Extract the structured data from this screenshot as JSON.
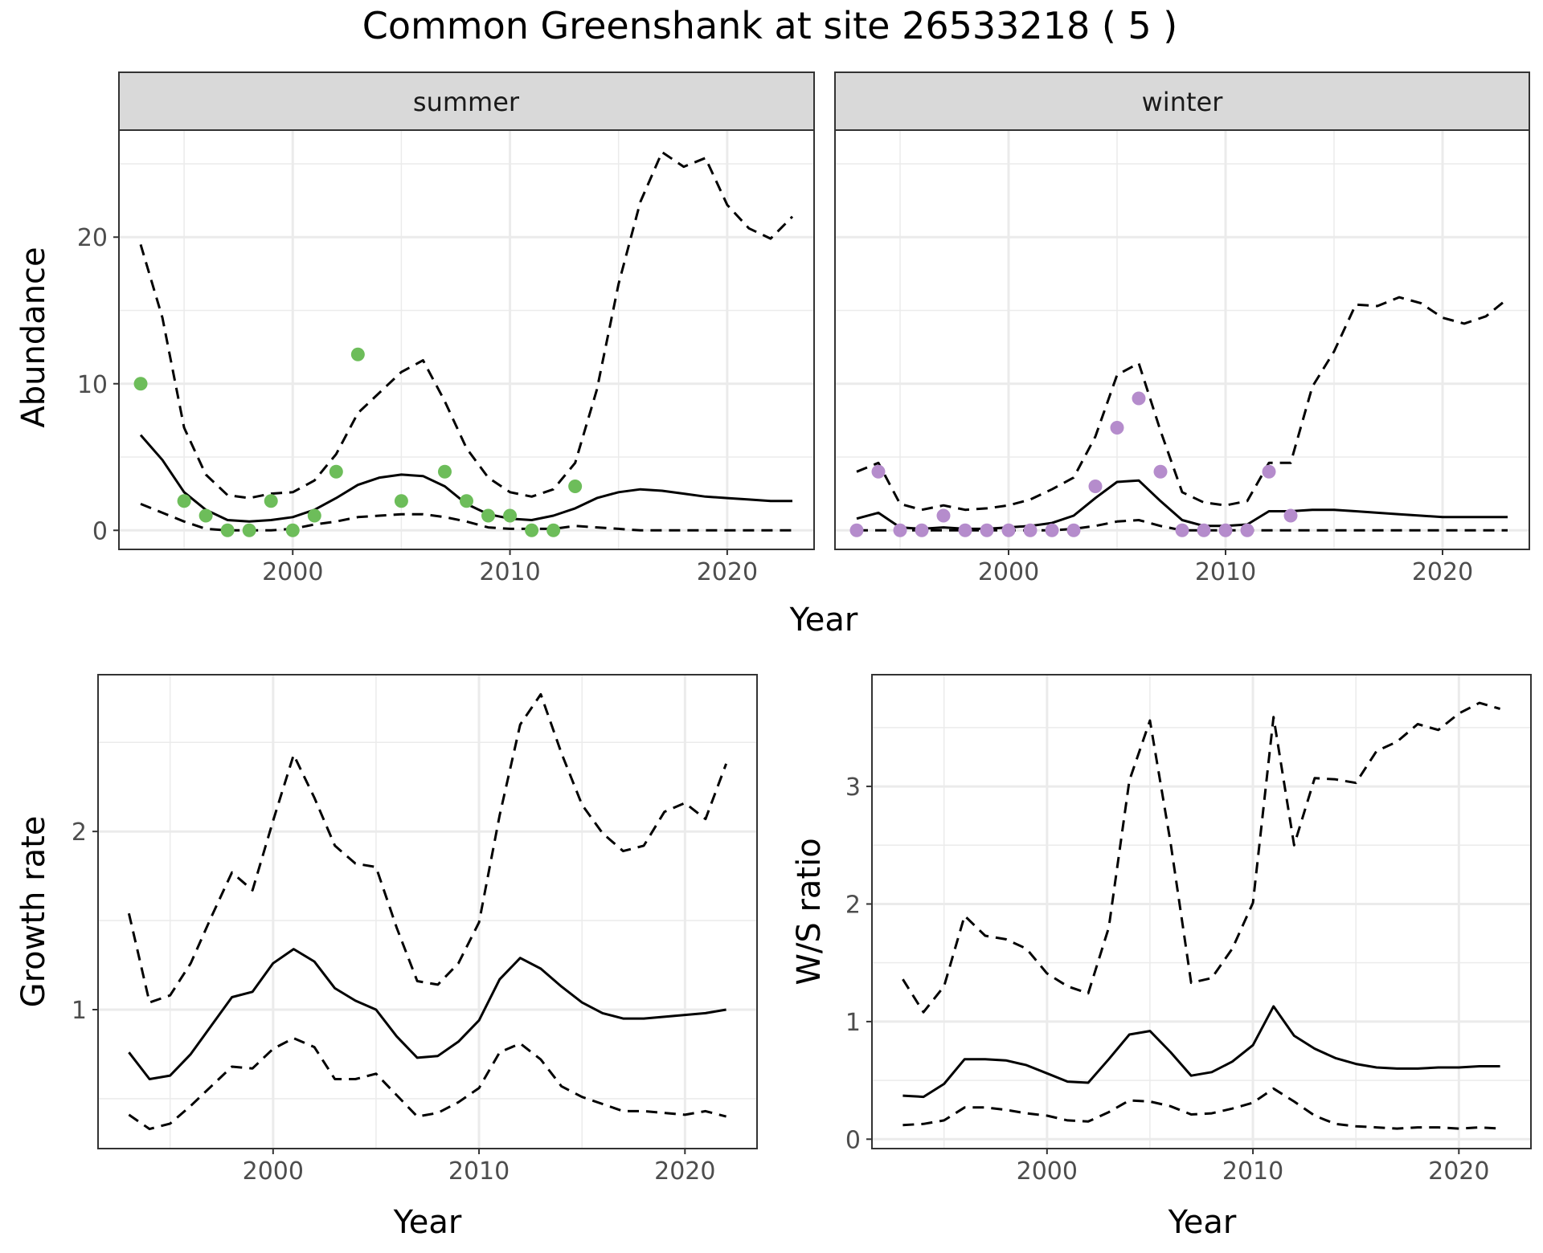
{
  "title": "Common Greenshank at site 26533218 ( 5 )",
  "colors": {
    "summer_points": "#6dbd5a",
    "winter_points": "#b58ccc",
    "line": "#000000",
    "strip_fill": "#d9d9d9",
    "panel_border": "#333333",
    "grid": "#ebebeb"
  },
  "chart_data": [
    {
      "id": "abundance",
      "type": "line",
      "facets": [
        "summer",
        "winter"
      ],
      "xlabel": "Year",
      "ylabel": "Abundance",
      "xlim": [
        1992,
        2024
      ],
      "ylim": [
        -1.3,
        27.3
      ],
      "xticks": [
        2000,
        2010,
        2020
      ],
      "yticks": [
        0,
        10,
        20
      ],
      "grid": true,
      "panels": [
        {
          "facet": "summer",
          "observed": {
            "x": [
              1993,
              1995,
              1996,
              1997,
              1998,
              1999,
              2000,
              2001,
              2002,
              2003,
              2005,
              2007,
              2008,
              2009,
              2010,
              2011,
              2012,
              2013
            ],
            "y": [
              10,
              2,
              1,
              0,
              0,
              2,
              0,
              1,
              4,
              12,
              2,
              4,
              2,
              1,
              1,
              0,
              0,
              3
            ]
          },
          "estimate": {
            "x": [
              1993,
              1994,
              1995,
              1996,
              1997,
              1998,
              1999,
              2000,
              2001,
              2002,
              2003,
              2004,
              2005,
              2006,
              2007,
              2008,
              2009,
              2010,
              2011,
              2012,
              2013,
              2014,
              2015,
              2016,
              2017,
              2018,
              2019,
              2020,
              2021,
              2022,
              2023
            ],
            "y": [
              6.5,
              4.8,
              2.6,
              1.4,
              0.7,
              0.6,
              0.7,
              0.9,
              1.4,
              2.2,
              3.1,
              3.6,
              3.8,
              3.7,
              3.0,
              1.8,
              1.1,
              0.8,
              0.7,
              1.0,
              1.5,
              2.2,
              2.6,
              2.8,
              2.7,
              2.5,
              2.3,
              2.2,
              2.1,
              2.0,
              2.0
            ]
          },
          "upper": {
            "x": [
              1993,
              1994,
              1995,
              1996,
              1997,
              1998,
              1999,
              2000,
              2001,
              2002,
              2003,
              2004,
              2005,
              2006,
              2007,
              2008,
              2009,
              2010,
              2011,
              2012,
              2013,
              2014,
              2015,
              2016,
              2017,
              2018,
              2019,
              2020,
              2021,
              2022,
              2023
            ],
            "y": [
              19.5,
              14.5,
              7.0,
              3.8,
              2.4,
              2.2,
              2.5,
              2.6,
              3.4,
              5.2,
              8.0,
              9.4,
              10.8,
              11.6,
              8.8,
              5.6,
              3.6,
              2.6,
              2.3,
              2.8,
              4.6,
              9.6,
              16.8,
              22.4,
              25.8,
              24.8,
              25.4,
              22.2,
              20.6,
              19.9,
              21.4
            ]
          },
          "lower": {
            "x": [
              1993,
              1994,
              1995,
              1996,
              1997,
              1998,
              1999,
              2000,
              2001,
              2002,
              2003,
              2004,
              2005,
              2006,
              2007,
              2008,
              2009,
              2010,
              2011,
              2012,
              2013,
              2014,
              2015,
              2016,
              2017,
              2018,
              2019,
              2020,
              2021,
              2022,
              2023
            ],
            "y": [
              1.8,
              1.2,
              0.6,
              0.1,
              0.0,
              0.0,
              0.0,
              0.1,
              0.4,
              0.6,
              0.9,
              1.0,
              1.1,
              1.1,
              0.9,
              0.6,
              0.2,
              0.1,
              0.1,
              0.1,
              0.3,
              0.2,
              0.1,
              0.0,
              0.0,
              0.0,
              0.0,
              0.0,
              0.0,
              0.0,
              0.0
            ]
          }
        },
        {
          "facet": "winter",
          "observed": {
            "x": [
              1993,
              1994,
              1995,
              1996,
              1997,
              1998,
              1999,
              2000,
              2001,
              2002,
              2003,
              2004,
              2005,
              2006,
              2007,
              2008,
              2009,
              2010,
              2011,
              2012,
              2013
            ],
            "y": [
              0,
              4,
              0,
              0,
              1,
              0,
              0,
              0,
              0,
              0,
              0,
              3,
              7,
              9,
              4,
              0,
              0,
              0,
              0,
              4,
              1
            ]
          },
          "estimate": {
            "x": [
              1993,
              1994,
              1995,
              1996,
              1997,
              1998,
              1999,
              2000,
              2001,
              2002,
              2003,
              2004,
              2005,
              2006,
              2007,
              2008,
              2009,
              2010,
              2011,
              2012,
              2013,
              2014,
              2015,
              2016,
              2017,
              2018,
              2019,
              2020,
              2021,
              2022,
              2023
            ],
            "y": [
              0.8,
              1.2,
              0.2,
              0.1,
              0.2,
              0.1,
              0.1,
              0.2,
              0.3,
              0.5,
              1.0,
              2.2,
              3.3,
              3.4,
              2.0,
              0.7,
              0.3,
              0.3,
              0.4,
              1.3,
              1.3,
              1.4,
              1.4,
              1.3,
              1.2,
              1.1,
              1.0,
              0.9,
              0.9,
              0.9,
              0.9
            ]
          },
          "upper": {
            "x": [
              1993,
              1994,
              1995,
              1996,
              1997,
              1998,
              1999,
              2000,
              2001,
              2002,
              2003,
              2004,
              2005,
              2006,
              2007,
              2008,
              2009,
              2010,
              2011,
              2012,
              2013,
              2014,
              2015,
              2016,
              2017,
              2018,
              2019,
              2020,
              2021,
              2022,
              2023
            ],
            "y": [
              4.0,
              4.6,
              1.8,
              1.4,
              1.7,
              1.4,
              1.5,
              1.7,
              2.1,
              2.8,
              3.6,
              6.4,
              10.6,
              11.4,
              6.8,
              2.6,
              1.9,
              1.7,
              2.0,
              4.6,
              4.6,
              9.8,
              12.2,
              15.4,
              15.3,
              15.9,
              15.5,
              14.5,
              14.1,
              14.6,
              15.8
            ]
          },
          "lower": {
            "x": [
              1993,
              1994,
              1995,
              1996,
              1997,
              1998,
              1999,
              2000,
              2001,
              2002,
              2003,
              2004,
              2005,
              2006,
              2007,
              2008,
              2009,
              2010,
              2011,
              2012,
              2013,
              2014,
              2015,
              2016,
              2017,
              2018,
              2019,
              2020,
              2021,
              2022,
              2023
            ],
            "y": [
              0.0,
              0.0,
              0.0,
              0.0,
              0.0,
              0.0,
              0.0,
              0.0,
              0.0,
              0.0,
              0.1,
              0.3,
              0.6,
              0.7,
              0.3,
              0.0,
              0.0,
              0.0,
              0.0,
              0.0,
              0.0,
              0.0,
              0.0,
              0.0,
              0.0,
              0.0,
              0.0,
              0.0,
              0.0,
              0.0,
              0.0
            ]
          }
        }
      ]
    },
    {
      "id": "growth",
      "type": "line",
      "xlabel": "Year",
      "ylabel": "Growth rate",
      "xlim": [
        1991.5,
        2023.5
      ],
      "ylim": [
        0.22,
        2.88
      ],
      "xticks": [
        2000,
        2010,
        2020
      ],
      "yticks": [
        1,
        2
      ],
      "grid": true,
      "estimate": {
        "x": [
          1993,
          1994,
          1995,
          1996,
          1997,
          1998,
          1999,
          2000,
          2001,
          2002,
          2003,
          2004,
          2005,
          2006,
          2007,
          2008,
          2009,
          2010,
          2011,
          2012,
          2013,
          2014,
          2015,
          2016,
          2017,
          2018,
          2019,
          2020,
          2021,
          2022
        ],
        "y": [
          0.76,
          0.61,
          0.63,
          0.75,
          0.91,
          1.07,
          1.1,
          1.26,
          1.34,
          1.27,
          1.12,
          1.05,
          1.0,
          0.85,
          0.73,
          0.74,
          0.82,
          0.94,
          1.17,
          1.29,
          1.23,
          1.13,
          1.04,
          0.98,
          0.95,
          0.95,
          0.96,
          0.97,
          0.98,
          1.0
        ]
      },
      "upper": {
        "x": [
          1993,
          1994,
          1995,
          1996,
          1997,
          1998,
          1999,
          2000,
          2001,
          2002,
          2003,
          2004,
          2005,
          2006,
          2007,
          2008,
          2009,
          2010,
          2011,
          2012,
          2013,
          2014,
          2015,
          2016,
          2017,
          2018,
          2019,
          2020,
          2021,
          2022
        ],
        "y": [
          1.54,
          1.04,
          1.08,
          1.26,
          1.52,
          1.77,
          1.67,
          2.06,
          2.43,
          2.19,
          1.92,
          1.82,
          1.8,
          1.46,
          1.16,
          1.14,
          1.26,
          1.49,
          2.09,
          2.6,
          2.77,
          2.44,
          2.15,
          1.99,
          1.89,
          1.92,
          2.11,
          2.16,
          2.07,
          2.38
        ]
      },
      "lower": {
        "x": [
          1993,
          1994,
          1995,
          1996,
          1997,
          1998,
          1999,
          2000,
          2001,
          2002,
          2003,
          2004,
          2005,
          2006,
          2007,
          2008,
          2009,
          2010,
          2011,
          2012,
          2013,
          2014,
          2015,
          2016,
          2017,
          2018,
          2019,
          2020,
          2021,
          2022
        ],
        "y": [
          0.41,
          0.33,
          0.36,
          0.46,
          0.57,
          0.68,
          0.67,
          0.78,
          0.84,
          0.79,
          0.61,
          0.61,
          0.64,
          0.52,
          0.4,
          0.42,
          0.48,
          0.56,
          0.76,
          0.81,
          0.72,
          0.57,
          0.51,
          0.47,
          0.43,
          0.43,
          0.42,
          0.41,
          0.43,
          0.4
        ]
      }
    },
    {
      "id": "ratio",
      "type": "line",
      "xlabel": "Year",
      "ylabel": "W/S ratio",
      "xlim": [
        1991.5,
        2023.5
      ],
      "ylim": [
        -0.08,
        3.95
      ],
      "xticks": [
        2000,
        2010,
        2020
      ],
      "yticks": [
        0,
        1,
        2,
        3
      ],
      "grid": true,
      "estimate": {
        "x": [
          1993,
          1994,
          1995,
          1996,
          1997,
          1998,
          1999,
          2000,
          2001,
          2002,
          2003,
          2004,
          2005,
          2006,
          2007,
          2008,
          2009,
          2010,
          2011,
          2012,
          2013,
          2014,
          2015,
          2016,
          2017,
          2018,
          2019,
          2020,
          2021,
          2022
        ],
        "y": [
          0.37,
          0.36,
          0.47,
          0.68,
          0.68,
          0.67,
          0.63,
          0.56,
          0.49,
          0.48,
          0.68,
          0.89,
          0.92,
          0.74,
          0.54,
          0.57,
          0.66,
          0.8,
          1.13,
          0.88,
          0.77,
          0.69,
          0.64,
          0.61,
          0.6,
          0.6,
          0.61,
          0.61,
          0.62,
          0.62
        ]
      },
      "upper": {
        "x": [
          1993,
          1994,
          1995,
          1996,
          1997,
          1998,
          1999,
          2000,
          2001,
          2002,
          2003,
          2004,
          2005,
          2006,
          2007,
          2008,
          2009,
          2010,
          2011,
          2012,
          2013,
          2014,
          2015,
          2016,
          2017,
          2018,
          2019,
          2020,
          2021,
          2022
        ],
        "y": [
          1.36,
          1.08,
          1.3,
          1.9,
          1.73,
          1.7,
          1.62,
          1.41,
          1.3,
          1.24,
          1.8,
          3.05,
          3.56,
          2.52,
          1.33,
          1.37,
          1.62,
          2.01,
          3.59,
          2.5,
          3.07,
          3.06,
          3.03,
          3.3,
          3.38,
          3.53,
          3.48,
          3.62,
          3.71,
          3.66
        ]
      },
      "lower": {
        "x": [
          1993,
          1994,
          1995,
          1996,
          1997,
          1998,
          1999,
          2000,
          2001,
          2002,
          2003,
          2004,
          2005,
          2006,
          2007,
          2008,
          2009,
          2010,
          2011,
          2012,
          2013,
          2014,
          2015,
          2016,
          2017,
          2018,
          2019,
          2020,
          2021,
          2022
        ],
        "y": [
          0.12,
          0.13,
          0.16,
          0.27,
          0.27,
          0.25,
          0.22,
          0.2,
          0.16,
          0.15,
          0.23,
          0.33,
          0.32,
          0.28,
          0.21,
          0.22,
          0.26,
          0.31,
          0.43,
          0.32,
          0.2,
          0.13,
          0.11,
          0.1,
          0.09,
          0.1,
          0.1,
          0.09,
          0.1,
          0.09
        ]
      }
    }
  ]
}
